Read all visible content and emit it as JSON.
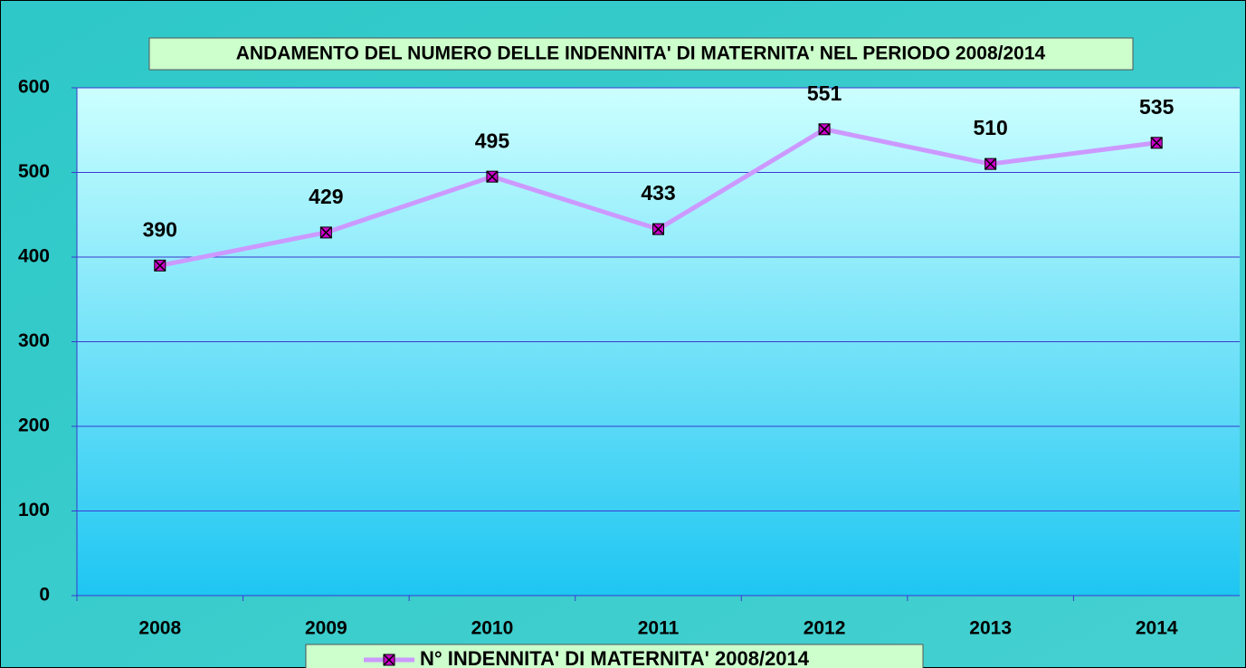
{
  "chart_data": {
    "type": "line",
    "title": "ANDAMENTO DEL NUMERO DELLE INDENNITA' DI MATERNITA' NEL PERIODO 2008/2014",
    "categories": [
      "2008",
      "2009",
      "2010",
      "2011",
      "2012",
      "2013",
      "2014"
    ],
    "series": [
      {
        "name": "N° INDENNITA' DI MATERNITA' 2008/2014",
        "color": "#cc99ff",
        "marker_color": "#cc00cc",
        "values": [
          390,
          429,
          495,
          433,
          551,
          510,
          535
        ]
      }
    ],
    "ylim": [
      0,
      600
    ],
    "yticks": [
      0,
      100,
      200,
      300,
      400,
      500,
      600
    ],
    "grid": true,
    "legend": "bottom"
  }
}
